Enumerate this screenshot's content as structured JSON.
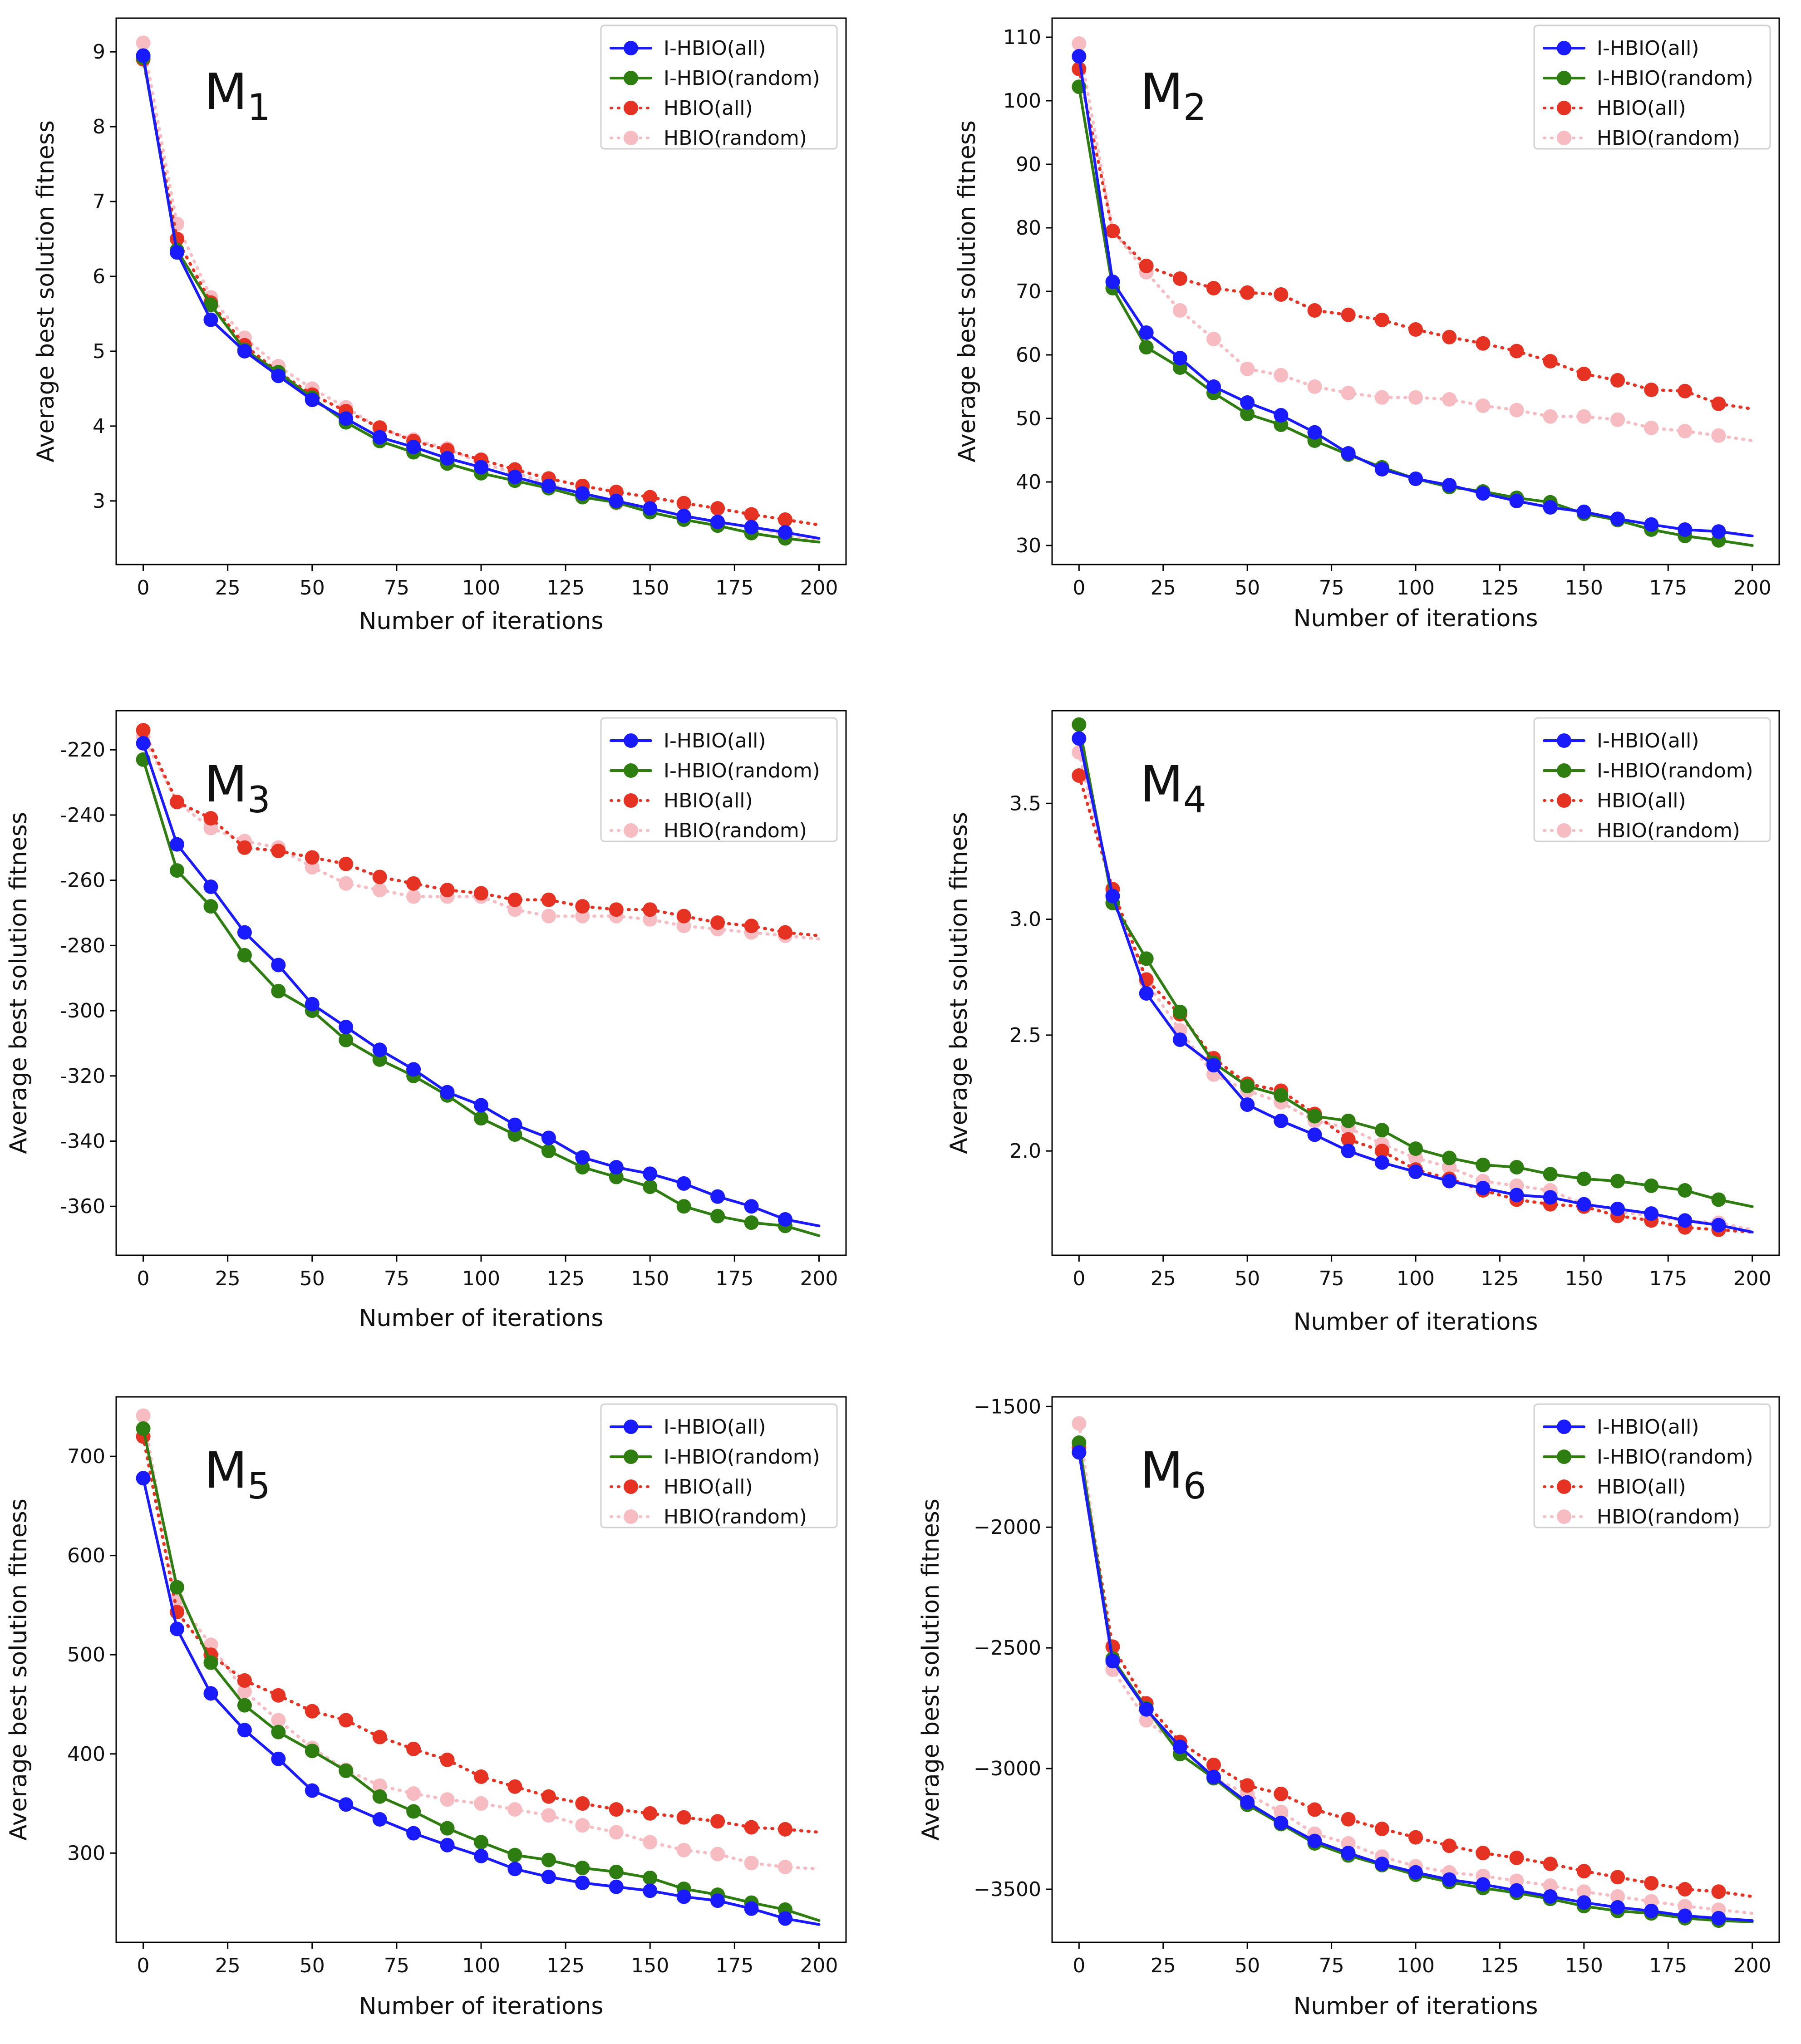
{
  "chart_data": [
    {
      "type": "line",
      "title": "M",
      "title_sub": "1",
      "xlabel": "Number of iterations",
      "ylabel": "Average best solution fitness",
      "xlim": [
        -8,
        208
      ],
      "ylim": [
        2.15,
        9.45
      ],
      "xticks": [
        0,
        25,
        50,
        75,
        100,
        125,
        150,
        175,
        200
      ],
      "yticks": [
        3,
        4,
        5,
        6,
        7,
        8,
        9
      ],
      "ytick_labels": [
        "3",
        "4",
        "5",
        "6",
        "7",
        "8",
        "9"
      ],
      "legend_position": "top-right",
      "x": [
        0,
        10,
        20,
        30,
        40,
        50,
        60,
        70,
        80,
        90,
        100,
        110,
        120,
        130,
        140,
        150,
        160,
        170,
        180,
        190,
        200
      ],
      "series": [
        {
          "name": "I-HBIO(all)",
          "color": "#1a1aff",
          "style": "solid",
          "values": [
            8.95,
            6.32,
            5.42,
            5.0,
            4.67,
            4.35,
            4.1,
            3.85,
            3.72,
            3.57,
            3.45,
            3.32,
            3.2,
            3.1,
            3.0,
            2.9,
            2.8,
            2.72,
            2.65,
            2.58,
            2.5
          ]
        },
        {
          "name": "I-HBIO(random)",
          "color": "#2e7d10",
          "style": "solid",
          "values": [
            8.92,
            6.35,
            5.62,
            5.02,
            4.72,
            4.38,
            4.05,
            3.8,
            3.65,
            3.5,
            3.37,
            3.27,
            3.17,
            3.05,
            2.98,
            2.85,
            2.75,
            2.67,
            2.57,
            2.5,
            2.45
          ]
        },
        {
          "name": "HBIO(all)",
          "color": "#e63222",
          "style": "dotted",
          "values": [
            8.9,
            6.5,
            5.65,
            5.08,
            4.72,
            4.42,
            4.2,
            3.98,
            3.8,
            3.68,
            3.55,
            3.42,
            3.3,
            3.2,
            3.12,
            3.05,
            2.97,
            2.9,
            2.82,
            2.75,
            2.68
          ]
        },
        {
          "name": "HBIO(random)",
          "color": "#f7bcc2",
          "style": "dotted",
          "values": [
            9.12,
            6.7,
            5.72,
            5.18,
            4.8,
            4.5,
            4.25,
            3.97,
            3.82,
            3.7,
            3.5,
            3.38,
            3.22,
            3.1,
            2.97,
            2.9,
            2.8,
            2.72,
            2.65,
            2.55,
            2.48
          ]
        }
      ]
    },
    {
      "type": "line",
      "title": "M",
      "title_sub": "2",
      "xlabel": "Number of iterations",
      "ylabel": "Average best solution fitness",
      "xlim": [
        -8,
        208
      ],
      "ylim": [
        27,
        113
      ],
      "xticks": [
        0,
        25,
        50,
        75,
        100,
        125,
        150,
        175,
        200
      ],
      "yticks": [
        30,
        40,
        50,
        60,
        70,
        80,
        90,
        100,
        110
      ],
      "ytick_labels": [
        "30",
        "40",
        "50",
        "60",
        "70",
        "80",
        "90",
        "100",
        "110"
      ],
      "legend_position": "top-right",
      "x": [
        0,
        10,
        20,
        30,
        40,
        50,
        60,
        70,
        80,
        90,
        100,
        110,
        120,
        130,
        140,
        150,
        160,
        170,
        180,
        190,
        200
      ],
      "series": [
        {
          "name": "I-HBIO(all)",
          "color": "#1a1aff",
          "style": "solid",
          "values": [
            107,
            71.5,
            63.5,
            59.5,
            55,
            52.5,
            50.5,
            47.8,
            44.5,
            42,
            40.5,
            39.5,
            38.2,
            37,
            36,
            35.3,
            34.2,
            33.3,
            32.5,
            32.2,
            31.5
          ]
        },
        {
          "name": "I-HBIO(random)",
          "color": "#2e7d10",
          "style": "solid",
          "values": [
            102.2,
            70.5,
            61.2,
            58,
            54,
            50.7,
            49,
            46.5,
            44.3,
            42.3,
            40.5,
            39.2,
            38.5,
            37.5,
            36.8,
            35,
            34,
            32.5,
            31.5,
            30.8,
            30
          ]
        },
        {
          "name": "HBIO(all)",
          "color": "#e63222",
          "style": "dotted",
          "values": [
            105,
            79.5,
            74,
            72,
            70.5,
            69.8,
            69.5,
            67,
            66.3,
            65.5,
            64,
            62.8,
            61.8,
            60.6,
            59,
            57,
            56,
            54.5,
            54.3,
            52.3,
            51.5
          ]
        },
        {
          "name": "HBIO(random)",
          "color": "#f7bcc2",
          "style": "dotted",
          "values": [
            109,
            79.5,
            73,
            67,
            62.5,
            57.8,
            56.8,
            55,
            54,
            53.3,
            53.3,
            53,
            52,
            51.3,
            50.3,
            50.3,
            49.8,
            48.5,
            48,
            47.3,
            46.5
          ]
        }
      ]
    },
    {
      "type": "line",
      "title": "M",
      "title_sub": "3",
      "xlabel": "Number of iterations",
      "ylabel": "Average best solution fitness",
      "xlim": [
        -8,
        208
      ],
      "ylim": [
        -375,
        -208
      ],
      "xticks": [
        0,
        25,
        50,
        75,
        100,
        125,
        150,
        175,
        200
      ],
      "yticks": [
        -360,
        -340,
        -320,
        -300,
        -280,
        -260,
        -240,
        -220
      ],
      "ytick_labels": [
        "-360",
        "-340",
        "-320",
        "-300",
        "-280",
        "-260",
        "-240",
        "-220"
      ],
      "legend_position": "top-right",
      "x": [
        0,
        10,
        20,
        30,
        40,
        50,
        60,
        70,
        80,
        90,
        100,
        110,
        120,
        130,
        140,
        150,
        160,
        170,
        180,
        190,
        200
      ],
      "series": [
        {
          "name": "I-HBIO(all)",
          "color": "#1a1aff",
          "style": "solid",
          "values": [
            -218,
            -249,
            -262,
            -276,
            -286,
            -298,
            -305,
            -312,
            -318,
            -325,
            -329,
            -335,
            -339,
            -345,
            -348,
            -350,
            -353,
            -357,
            -360,
            -364,
            -366
          ]
        },
        {
          "name": "I-HBIO(random)",
          "color": "#2e7d10",
          "style": "solid",
          "values": [
            -223,
            -257,
            -268,
            -283,
            -294,
            -300,
            -309,
            -315,
            -320,
            -326,
            -333,
            -338,
            -343,
            -348,
            -351,
            -354,
            -360,
            -363,
            -365,
            -366,
            -369
          ]
        },
        {
          "name": "HBIO(all)",
          "color": "#e63222",
          "style": "dotted",
          "values": [
            -214,
            -236,
            -241,
            -250,
            -251,
            -253,
            -255,
            -259,
            -261,
            -263,
            -264,
            -266,
            -266,
            -268,
            -269,
            -269,
            -271,
            -273,
            -274,
            -276,
            -277
          ]
        },
        {
          "name": "HBIO(random)",
          "color": "#f7bcc2",
          "style": "dotted",
          "values": [
            -216,
            -236,
            -244,
            -248,
            -250,
            -256,
            -261,
            -263,
            -265,
            -265,
            -265,
            -269,
            -271,
            -271,
            -271,
            -272,
            -274,
            -275,
            -276,
            -277,
            -278
          ]
        }
      ]
    },
    {
      "type": "line",
      "title": "M",
      "title_sub": "4",
      "xlabel": "Number of iterations",
      "ylabel": "Average best solution fitness",
      "xlim": [
        -8,
        208
      ],
      "ylim": [
        1.55,
        3.9
      ],
      "xticks": [
        0,
        25,
        50,
        75,
        100,
        125,
        150,
        175,
        200
      ],
      "yticks": [
        2.0,
        2.5,
        3.0,
        3.5
      ],
      "ytick_labels": [
        "2.0",
        "2.5",
        "3.0",
        "3.5"
      ],
      "legend_position": "top-right",
      "x": [
        0,
        10,
        20,
        30,
        40,
        50,
        60,
        70,
        80,
        90,
        100,
        110,
        120,
        130,
        140,
        150,
        160,
        170,
        180,
        190,
        200
      ],
      "series": [
        {
          "name": "I-HBIO(all)",
          "color": "#1a1aff",
          "style": "solid",
          "values": [
            3.78,
            3.1,
            2.68,
            2.48,
            2.37,
            2.2,
            2.13,
            2.07,
            2.0,
            1.95,
            1.91,
            1.87,
            1.84,
            1.81,
            1.8,
            1.77,
            1.75,
            1.73,
            1.7,
            1.68,
            1.65
          ]
        },
        {
          "name": "I-HBIO(random)",
          "color": "#2e7d10",
          "style": "solid",
          "values": [
            3.84,
            3.07,
            2.83,
            2.6,
            2.38,
            2.28,
            2.24,
            2.15,
            2.13,
            2.09,
            2.01,
            1.97,
            1.94,
            1.93,
            1.9,
            1.88,
            1.87,
            1.85,
            1.83,
            1.79,
            1.76
          ]
        },
        {
          "name": "HBIO(all)",
          "color": "#e63222",
          "style": "dotted",
          "values": [
            3.62,
            3.13,
            2.74,
            2.59,
            2.4,
            2.29,
            2.26,
            2.16,
            2.05,
            2.0,
            1.92,
            1.88,
            1.83,
            1.79,
            1.77,
            1.76,
            1.72,
            1.7,
            1.67,
            1.66,
            1.65
          ]
        },
        {
          "name": "HBIO(random)",
          "color": "#f7bcc2",
          "style": "dotted",
          "values": [
            3.72,
            3.1,
            2.73,
            2.52,
            2.33,
            2.26,
            2.21,
            2.13,
            2.1,
            2.03,
            1.97,
            1.93,
            1.87,
            1.85,
            1.83,
            1.77,
            1.74,
            1.72,
            1.7,
            1.69,
            1.66
          ]
        }
      ]
    },
    {
      "type": "line",
      "title": "M",
      "title_sub": "5",
      "xlabel": "Number of iterations",
      "ylabel": "Average best solution fitness",
      "xlim": [
        -8,
        208
      ],
      "ylim": [
        210,
        760
      ],
      "xticks": [
        0,
        25,
        50,
        75,
        100,
        125,
        150,
        175,
        200
      ],
      "yticks": [
        300,
        400,
        500,
        600,
        700
      ],
      "ytick_labels": [
        "300",
        "400",
        "500",
        "600",
        "700"
      ],
      "legend_position": "top-right",
      "x": [
        0,
        10,
        20,
        30,
        40,
        50,
        60,
        70,
        80,
        90,
        100,
        110,
        120,
        130,
        140,
        150,
        160,
        170,
        180,
        190,
        200
      ],
      "series": [
        {
          "name": "I-HBIO(all)",
          "color": "#1a1aff",
          "style": "solid",
          "values": [
            678,
            526,
            461,
            424,
            395,
            363,
            349,
            334,
            320,
            308,
            297,
            284,
            276,
            270,
            266,
            262,
            256,
            252,
            244,
            234,
            228
          ]
        },
        {
          "name": "I-HBIO(random)",
          "color": "#2e7d10",
          "style": "solid",
          "values": [
            728,
            568,
            492,
            449,
            422,
            403,
            383,
            357,
            342,
            325,
            311,
            298,
            293,
            285,
            281,
            275,
            264,
            258,
            250,
            243,
            232
          ]
        },
        {
          "name": "HBIO(all)",
          "color": "#e63222",
          "style": "dotted",
          "values": [
            720,
            543,
            500,
            474,
            459,
            443,
            434,
            417,
            405,
            394,
            377,
            367,
            357,
            350,
            344,
            340,
            336,
            332,
            326,
            324,
            321
          ]
        },
        {
          "name": "HBIO(random)",
          "color": "#f7bcc2",
          "style": "dotted",
          "values": [
            741,
            556,
            510,
            463,
            434,
            406,
            384,
            368,
            360,
            354,
            350,
            344,
            338,
            328,
            321,
            311,
            303,
            299,
            290,
            286,
            284
          ]
        }
      ]
    },
    {
      "type": "line",
      "title": "M",
      "title_sub": "6",
      "xlabel": "Number of iterations",
      "ylabel": "Average best solution fitness",
      "xlim": [
        -8,
        208
      ],
      "ylim": [
        -3720,
        -1460
      ],
      "xticks": [
        0,
        25,
        50,
        75,
        100,
        125,
        150,
        175,
        200
      ],
      "yticks": [
        -3500,
        -3000,
        -2500,
        -2000,
        -1500
      ],
      "ytick_labels": [
        "−3500",
        "−3000",
        "−2500",
        "−2000",
        "−1500"
      ],
      "legend_position": "top-right",
      "x": [
        0,
        10,
        20,
        30,
        40,
        50,
        60,
        70,
        80,
        90,
        100,
        110,
        120,
        130,
        140,
        150,
        160,
        170,
        180,
        190,
        200
      ],
      "series": [
        {
          "name": "I-HBIO(all)",
          "color": "#1a1aff",
          "style": "solid",
          "values": [
            -1690,
            -2555,
            -2755,
            -2910,
            -3035,
            -3140,
            -3225,
            -3300,
            -3350,
            -3395,
            -3430,
            -3460,
            -3480,
            -3505,
            -3530,
            -3555,
            -3575,
            -3590,
            -3610,
            -3620,
            -3630
          ]
        },
        {
          "name": "I-HBIO(random)",
          "color": "#2e7d10",
          "style": "solid",
          "values": [
            -1650,
            -2545,
            -2750,
            -2940,
            -3040,
            -3150,
            -3230,
            -3310,
            -3360,
            -3400,
            -3440,
            -3470,
            -3495,
            -3515,
            -3540,
            -3570,
            -3590,
            -3600,
            -3620,
            -3630,
            -3635
          ]
        },
        {
          "name": "HBIO(all)",
          "color": "#e63222",
          "style": "dotted",
          "values": [
            -1670,
            -2495,
            -2730,
            -2890,
            -2985,
            -3070,
            -3105,
            -3170,
            -3210,
            -3250,
            -3285,
            -3320,
            -3350,
            -3370,
            -3395,
            -3425,
            -3450,
            -3475,
            -3500,
            -3510,
            -3530
          ]
        },
        {
          "name": "HBIO(random)",
          "color": "#f7bcc2",
          "style": "dotted",
          "values": [
            -1570,
            -2590,
            -2800,
            -2910,
            -3040,
            -3105,
            -3180,
            -3270,
            -3310,
            -3365,
            -3405,
            -3430,
            -3445,
            -3465,
            -3485,
            -3510,
            -3530,
            -3550,
            -3570,
            -3585,
            -3600
          ]
        }
      ]
    }
  ]
}
